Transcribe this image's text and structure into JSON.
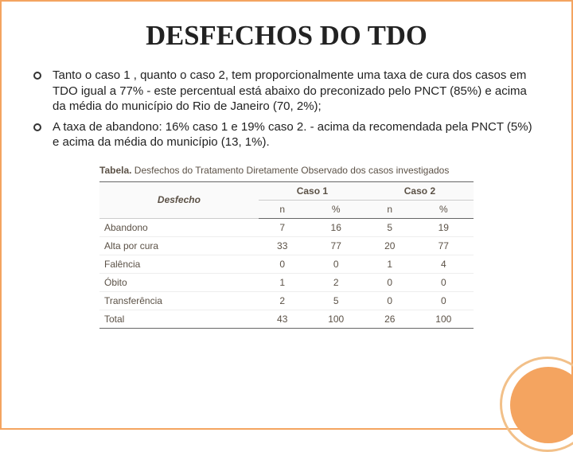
{
  "colors": {
    "border": "#f4a460",
    "title": "#222222",
    "body_text": "#222222",
    "table_text": "#5b5146",
    "caption_text": "#5b5146",
    "header_bg": "#fafafa",
    "row_border": "#eeeeee",
    "strong_border": "#666666"
  },
  "fonts": {
    "title_family": "Georgia, 'Times New Roman', serif",
    "title_size_pt": 26,
    "body_family": "Arial, Helvetica, sans-serif",
    "body_size_pt": 15,
    "table_size_pt": 12
  },
  "title": "DESFECHOS DO TDO",
  "bullets": [
    "Tanto o caso 1 , quanto o caso 2, tem proporcionalmente uma taxa de cura dos casos em TDO igual a 77% - este percentual está abaixo do preconizado pelo PNCT (85%) e acima da média do município do Rio de Janeiro (70, 2%);",
    " A taxa de abandono: 16% caso 1 e 19% caso 2. - acima da recomendada pela PNCT (5%) e acima da média do município (13, 1%)."
  ],
  "table": {
    "caption_bold": "Tabela.",
    "caption_rest": " Desfechos do Tratamento Diretamente Observado dos casos investigados",
    "group_headers": [
      "Caso 1",
      "Caso 2"
    ],
    "row_label_header": "Desfecho",
    "sub_headers": [
      "n",
      "%",
      "n",
      "%"
    ],
    "rows": [
      {
        "label": "Abandono",
        "cells": [
          "7",
          "16",
          "5",
          "19"
        ]
      },
      {
        "label": "Alta por cura",
        "cells": [
          "33",
          "77",
          "20",
          "77"
        ]
      },
      {
        "label": "Falência",
        "cells": [
          "0",
          "0",
          "1",
          "4"
        ]
      },
      {
        "label": "Óbito",
        "cells": [
          "1",
          "2",
          "0",
          "0"
        ]
      },
      {
        "label": "Transferência",
        "cells": [
          "2",
          "5",
          "0",
          "0"
        ]
      }
    ],
    "total": {
      "label": "Total",
      "cells": [
        "43",
        "100",
        "26",
        "100"
      ]
    }
  }
}
